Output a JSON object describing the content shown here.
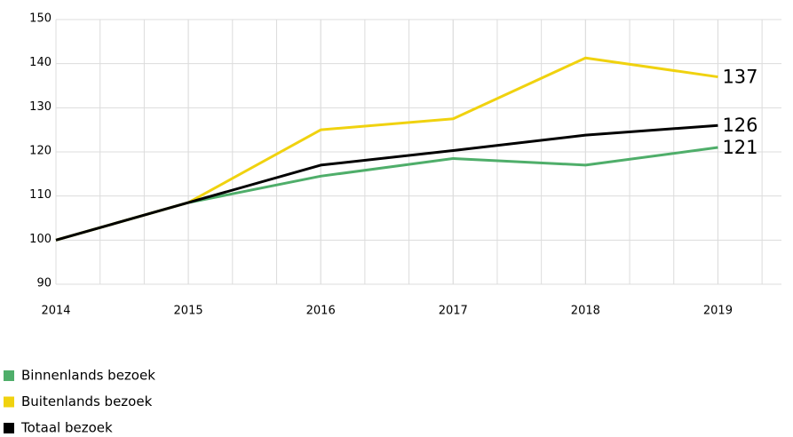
{
  "chart_data": {
    "type": "line",
    "x": [
      2014,
      2015,
      2016,
      2017,
      2018,
      2019
    ],
    "series": [
      {
        "name": "Binnenlands bezoek",
        "color": "#4fae6a",
        "values": [
          100,
          108.5,
          114.5,
          118.5,
          117,
          121
        ]
      },
      {
        "name": "Buitenlands bezoek",
        "color": "#f0d20f",
        "values": [
          100,
          108.5,
          125,
          127.5,
          141.3,
          137
        ]
      },
      {
        "name": "Totaal bezoek",
        "color": "#000000",
        "values": [
          100,
          108.5,
          117,
          120.3,
          123.8,
          126
        ]
      }
    ],
    "xlim": [
      2014,
      2019.48
    ],
    "xticks": [
      2014,
      2015,
      2016,
      2017,
      2018,
      2019
    ],
    "ylim": [
      90,
      150
    ],
    "yticks": [
      90,
      100,
      110,
      120,
      130,
      140,
      150
    ],
    "grid": true,
    "legend": "bottom"
  }
}
